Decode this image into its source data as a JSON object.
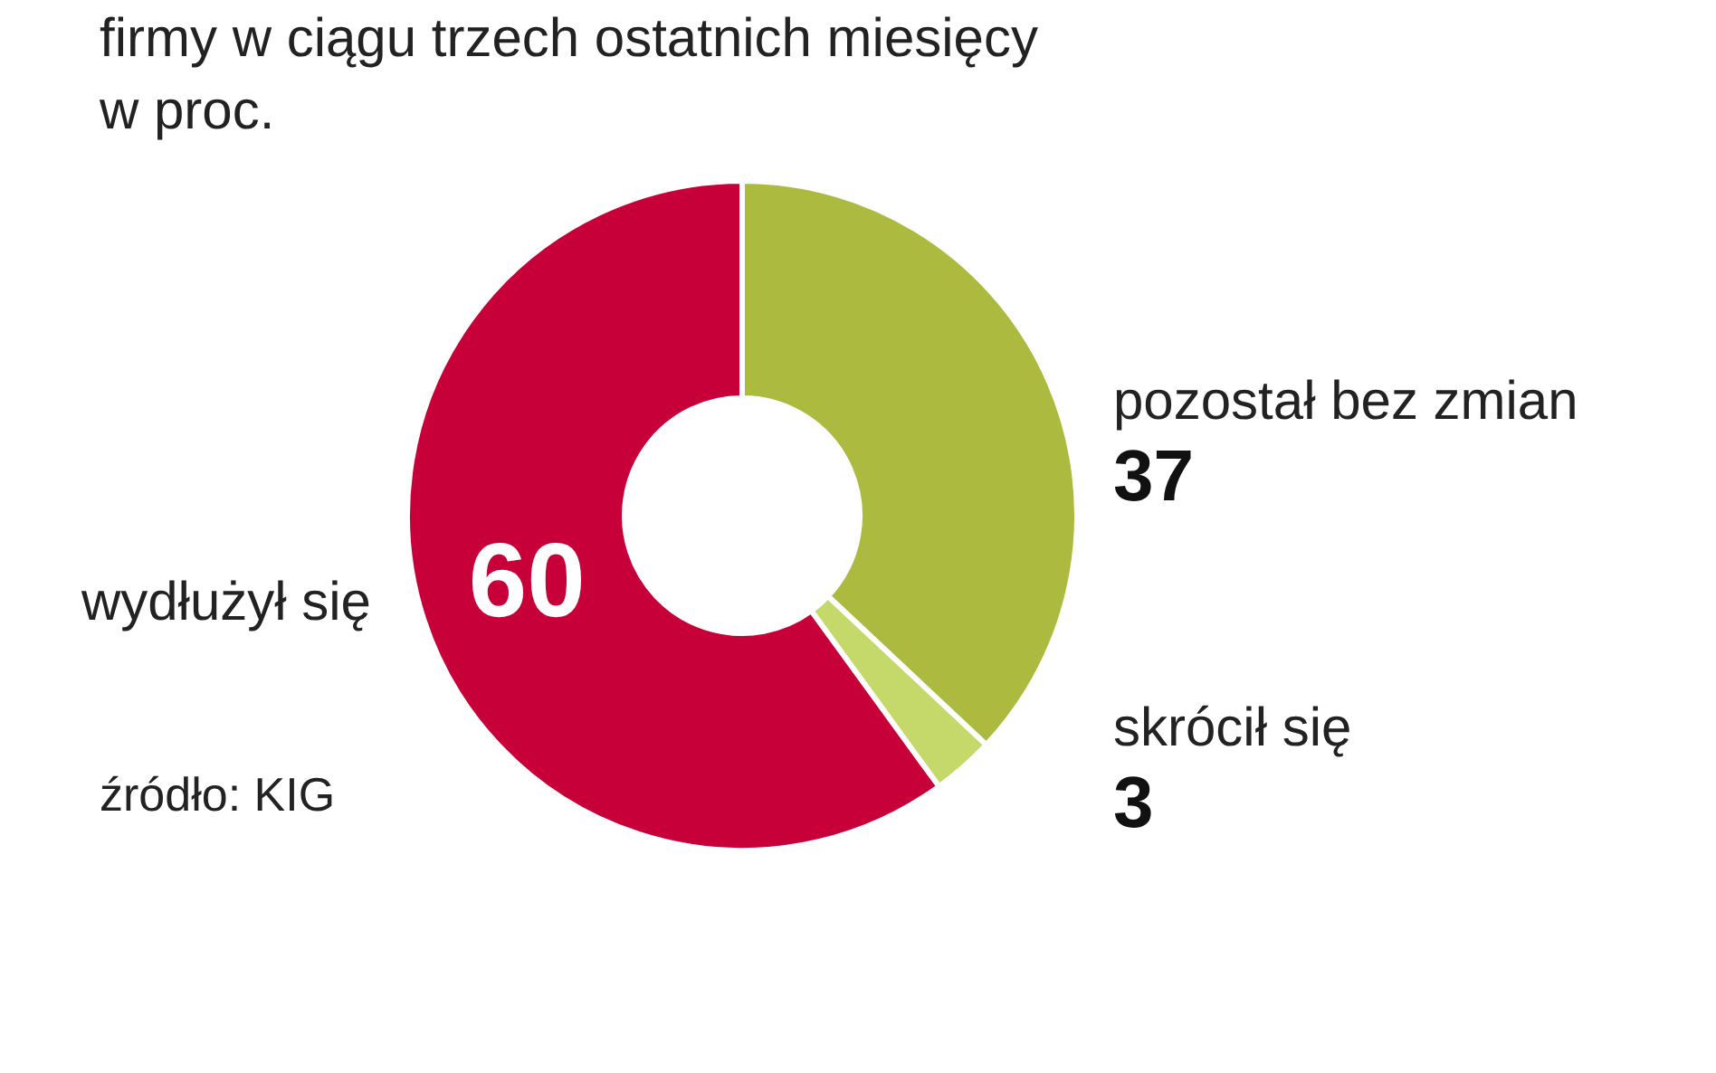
{
  "chart_data": {
    "type": "donut",
    "title": "firmy w ciągu trzech ostatnich miesięcy",
    "subtitle": "w proc.",
    "categories": [
      "pozostał bez zmian",
      "skrócił się",
      "wydłużył się"
    ],
    "values": [
      37,
      3,
      60
    ],
    "colors": [
      "#acbb3f",
      "#c5d96a",
      "#c8003a"
    ],
    "data_labels": true,
    "annotations": [
      "źródło: KIG"
    ]
  }
}
